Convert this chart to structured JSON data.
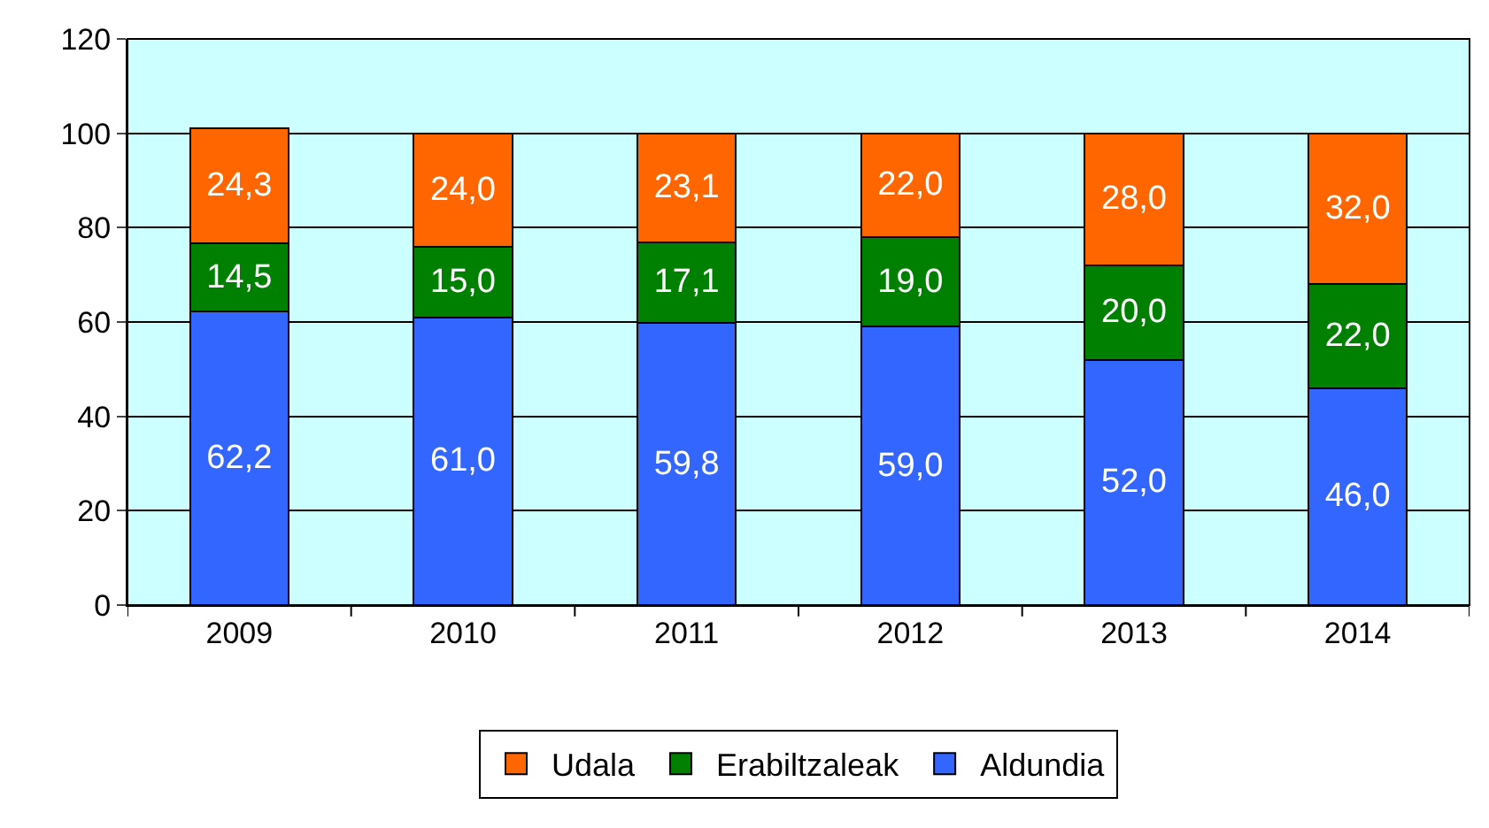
{
  "chart_data": {
    "type": "bar",
    "stacked": true,
    "categories": [
      "2009",
      "2010",
      "2011",
      "2012",
      "2013",
      "2014"
    ],
    "series": [
      {
        "name": "Aldundia",
        "color": "#3366ff",
        "values": [
          62.2,
          61.0,
          59.8,
          59.0,
          52.0,
          46.0
        ],
        "value_labels": [
          "62,2",
          "61,0",
          "59,8",
          "59,0",
          "52,0",
          "46,0"
        ]
      },
      {
        "name": "Erabiltzaleak",
        "color": "#008000",
        "values": [
          14.5,
          15.0,
          17.1,
          19.0,
          20.0,
          22.0
        ],
        "value_labels": [
          "14,5",
          "15,0",
          "17,1",
          "19,0",
          "20,0",
          "22,0"
        ]
      },
      {
        "name": "Udala",
        "color": "#ff6600",
        "values": [
          24.3,
          24.0,
          23.1,
          22.0,
          28.0,
          32.0
        ],
        "value_labels": [
          "24,3",
          "24,0",
          "23,1",
          "22,0",
          "28,0",
          "32,0"
        ]
      }
    ],
    "ylim": [
      0,
      120
    ],
    "yticks": [
      0,
      20,
      40,
      60,
      80,
      100,
      120
    ],
    "grid": "y",
    "legend": "bottom"
  }
}
